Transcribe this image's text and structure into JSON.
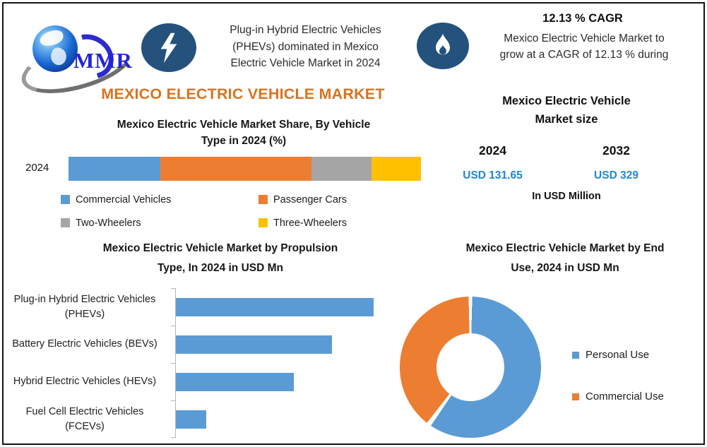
{
  "brand": {
    "logo_text": "MMR",
    "globe_icon": "globe-icon"
  },
  "header": {
    "bolt_icon": "lightning-icon",
    "flame_icon": "flame-icon",
    "headline": [
      "Plug-in Hybrid Electric Vehicles",
      "(PHEVs) dominated in Mexico",
      "Electric Vehicle Market in 2024"
    ],
    "cagr_title": "12.13 % CAGR",
    "cagr_text": [
      "Mexico Electric Vehicle Market to",
      "grow at a CAGR of 12.13 % during"
    ]
  },
  "main_title": "MEXICO ELECTRIC VEHICLE MARKET",
  "market_size": {
    "title_lines": [
      "Mexico Electric Vehicle",
      "Market size"
    ],
    "title": "Mexico Electric Vehicle Market size",
    "periods": [
      {
        "year": "2024",
        "value": "USD 131.65"
      },
      {
        "year": "2032",
        "value": "USD 329"
      }
    ],
    "unit_note": "In USD Million",
    "value_color": "#1E88D2"
  },
  "colors": {
    "accent_title_orange": "#D9731F",
    "icon_navy": "#24527C",
    "value_blue": "#1E88D2",
    "series_blue": "#5B9BD5",
    "series_orange": "#ED7D31",
    "series_gray": "#A5A5A5",
    "series_yellow": "#FFC000"
  },
  "chart_data": [
    {
      "type": "bar",
      "variant": "stacked-horizontal",
      "title": "Mexico Electric Vehicle Market Share, By Vehicle Type in 2024 (%)",
      "title_lines": [
        "Mexico Electric Vehicle Market Share, By Vehicle",
        "Type in 2024 (%)"
      ],
      "categories": [
        "2024"
      ],
      "series": [
        {
          "name": "Commercial Vehicles",
          "color": "#5B9BD5",
          "values": [
            26
          ]
        },
        {
          "name": "Passenger Cars",
          "color": "#ED7D31",
          "values": [
            43
          ]
        },
        {
          "name": "Two-Wheelers",
          "color": "#A5A5A5",
          "values": [
            17
          ]
        },
        {
          "name": "Three-Wheelers",
          "color": "#FFC000",
          "values": [
            14
          ]
        }
      ],
      "xlim": [
        0,
        100
      ],
      "legend_position": "bottom",
      "note": "percentages estimated from segment widths; no data labels shown"
    },
    {
      "type": "bar",
      "variant": "horizontal",
      "title": "Mexico Electric Vehicle Market by Propulsion Type, In 2024 in USD Mn",
      "title_lines": [
        "Mexico Electric Vehicle Market by Propulsion",
        "Type, In 2024 in USD Mn"
      ],
      "categories": [
        "Plug-in Hybrid Electric Vehicles (PHEVs)",
        "Battery Electric Vehicles (BEVs)",
        "Hybrid Electric Vehicles (HEVs)",
        "Fuel Cell Electric Vehicles (FCEVs)"
      ],
      "values": [
        52,
        41,
        31,
        8
      ],
      "color": "#5B9BD5",
      "xlim": [
        0,
        56
      ],
      "grid": false,
      "note": "values estimated from bar lengths; no axis or data labels shown"
    },
    {
      "type": "pie",
      "variant": "donut",
      "title": "Mexico Electric Vehicle Market by End Use, 2024 in USD Mn",
      "title_lines": [
        "Mexico Electric Vehicle Market by End",
        "Use, 2024 in USD Mn"
      ],
      "labels": [
        "Personal Use",
        "Commercial Use"
      ],
      "values": [
        60,
        40
      ],
      "colors": [
        "#5B9BD5",
        "#ED7D31"
      ],
      "legend_position": "right",
      "note": "slice sizes estimated; no data labels shown"
    }
  ]
}
